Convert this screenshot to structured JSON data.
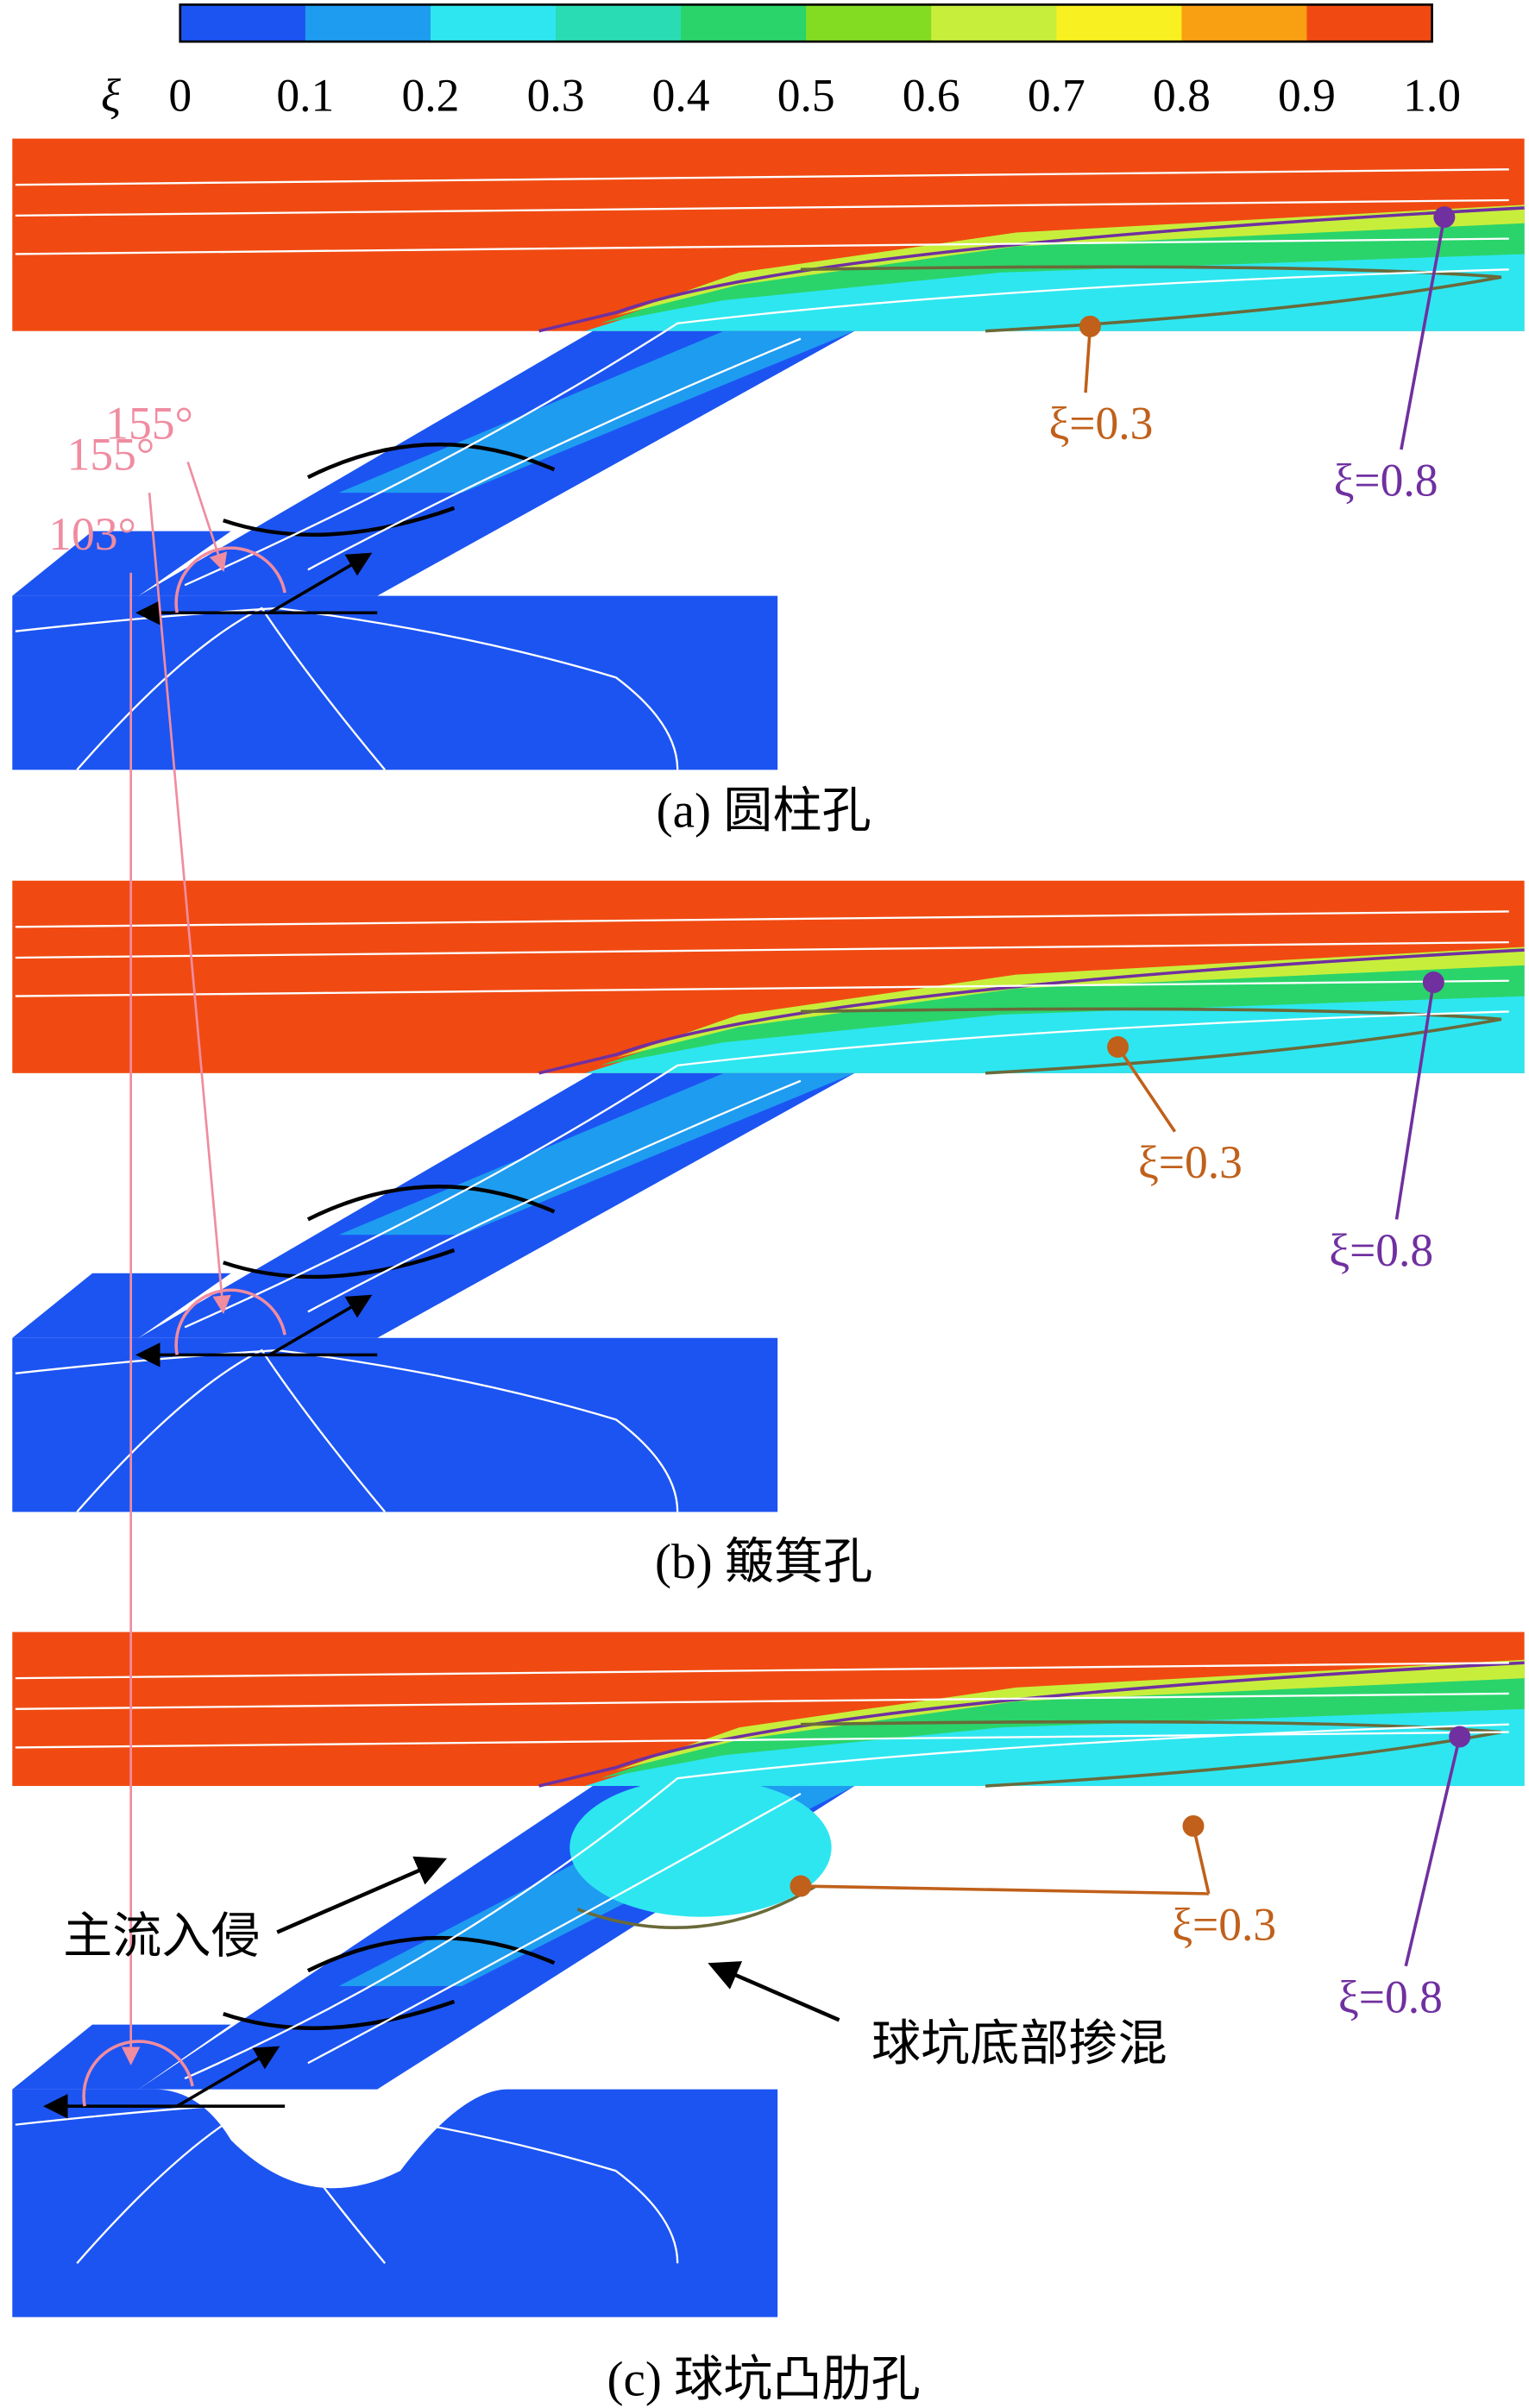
{
  "colorbar": {
    "symbol": "ξ",
    "ticks": [
      "0",
      "0.1",
      "0.2",
      "0.3",
      "0.4",
      "0.5",
      "0.6",
      "0.7",
      "0.8",
      "0.9",
      "1.0"
    ],
    "colors": [
      "#1c54f2",
      "#1e9cf0",
      "#2ee6f0",
      "#2adcb4",
      "#2ad46a",
      "#84dc22",
      "#c8ee3c",
      "#f8f020",
      "#f8a012",
      "#f04a12"
    ]
  },
  "panels": [
    {
      "caption": "(a) 圆柱孔",
      "angle": "155°",
      "xi_low": "ξ=0.3",
      "xi_high": "ξ=0.8"
    },
    {
      "caption": "(b) 簸箕孔",
      "angle": "155°",
      "xi_low": "ξ=0.3",
      "xi_high": "ξ=0.8"
    },
    {
      "caption": "(c) 球坑凸肋孔",
      "angle": "103°",
      "xi_low": "ξ=0.3",
      "xi_high": "ξ=0.8",
      "label_intrusion": "主流入侵",
      "label_mixing": "球坑底部掺混"
    }
  ]
}
